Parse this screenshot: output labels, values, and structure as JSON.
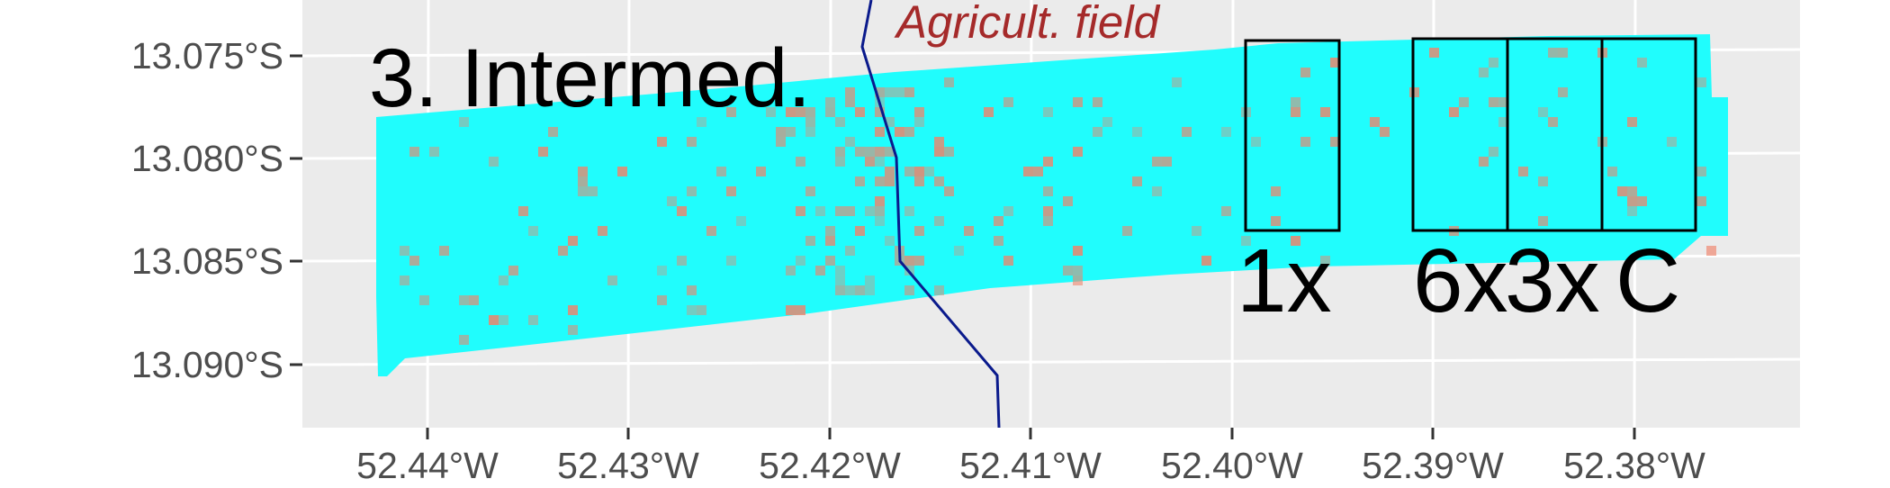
{
  "map": {
    "panel_title": "3. Intermed.",
    "feature_label": "Agricult. field",
    "box_labels": [
      "1x",
      "6x",
      "3x",
      "C"
    ],
    "y_axis_ticks": [
      "13.075°S",
      "13.080°S",
      "13.085°S",
      "13.090°S"
    ],
    "x_axis_ticks": [
      "52.44°W",
      "52.43°W",
      "52.42°W",
      "52.41°W",
      "52.40°W",
      "52.39°W",
      "52.38°W"
    ],
    "colors": {
      "panel_background": "#ebebeb",
      "grid": "#ffffff",
      "raster_base": "#20fdfd",
      "raster_hot": "#f0836a",
      "boundary_line": "#0a1a8c",
      "feature_label": "#a52a2a",
      "plot_outline": "#000000"
    }
  }
}
